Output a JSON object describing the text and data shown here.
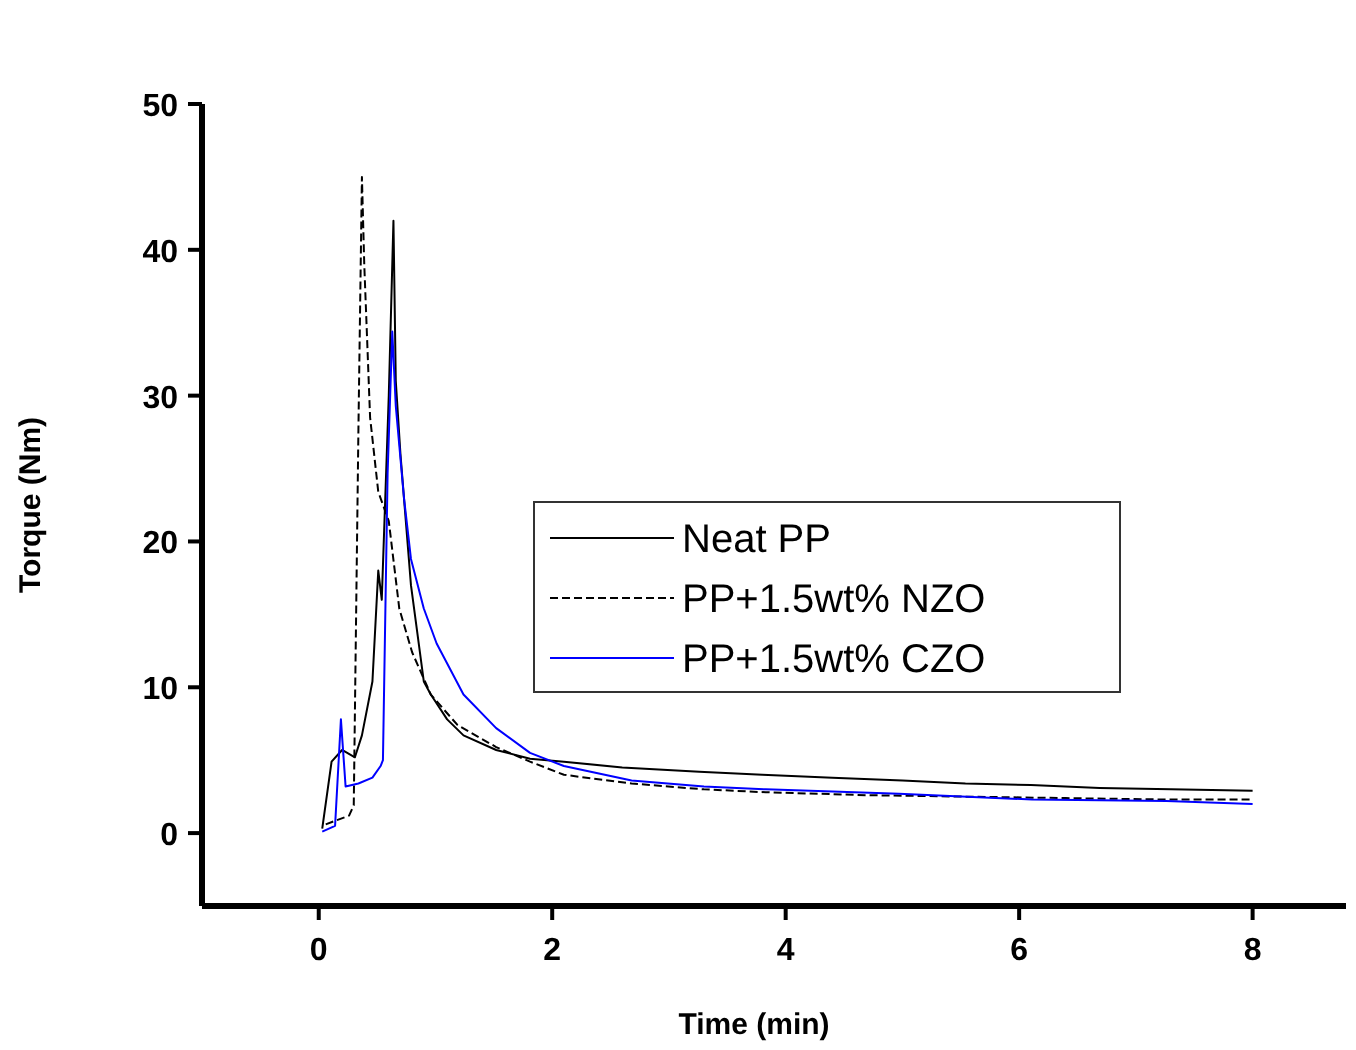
{
  "chart_data": {
    "type": "line",
    "xlabel": "Time (min)",
    "ylabel": "Torque (Nm)",
    "xlim": [
      -1,
      8.8
    ],
    "ylim": [
      -5,
      50
    ],
    "xticks": [
      0,
      2,
      4,
      6,
      8
    ],
    "yticks": [
      0,
      10,
      20,
      30,
      40,
      50
    ],
    "grid": false,
    "legend": "right",
    "series": [
      {
        "name": "Neat PP",
        "color": "#000000",
        "line_style": "solid",
        "x": [
          0.03,
          0.11,
          0.2,
          0.31,
          0.37,
          0.46,
          0.51,
          0.54,
          0.6,
          0.64,
          0.66,
          0.7,
          0.79,
          0.9,
          0.96,
          1.1,
          1.24,
          1.52,
          1.81,
          2.1,
          2.6,
          3.26,
          3.8,
          4.4,
          5.0,
          5.54,
          6.1,
          6.69,
          7.3,
          8.0
        ],
        "values": [
          0.3,
          4.9,
          5.7,
          5.2,
          6.7,
          10.4,
          18,
          16,
          30,
          42,
          31,
          26,
          17,
          10.4,
          9.5,
          7.8,
          6.7,
          5.7,
          5.1,
          4.9,
          4.5,
          4.2,
          4.0,
          3.8,
          3.6,
          3.4,
          3.3,
          3.1,
          3.0,
          2.9
        ]
      },
      {
        "name": "PP+1.5wt% NZO",
        "color": "#000000",
        "line_style": "dashed",
        "x": [
          0.06,
          0.26,
          0.3,
          0.34,
          0.37,
          0.39,
          0.44,
          0.51,
          0.6,
          0.69,
          0.8,
          0.96,
          1.19,
          1.52,
          1.81,
          2.1,
          2.68,
          3.3,
          3.83,
          4.7,
          5.54,
          6.4,
          7.26,
          8.0
        ],
        "values": [
          0.6,
          1.2,
          1.9,
          27.7,
          45,
          39,
          28.5,
          23.4,
          21.4,
          15.4,
          12.4,
          9.5,
          7.4,
          5.9,
          4.9,
          4.0,
          3.4,
          3.0,
          2.8,
          2.6,
          2.5,
          2.4,
          2.3,
          2.3
        ]
      },
      {
        "name": "PP+1.5wt% CZO",
        "color": "#0000ff",
        "line_style": "solid",
        "x": [
          0.03,
          0.14,
          0.19,
          0.23,
          0.34,
          0.46,
          0.53,
          0.55,
          0.59,
          0.63,
          0.66,
          0.73,
          0.79,
          0.9,
          1.01,
          1.24,
          1.52,
          1.81,
          2.1,
          2.68,
          3.3,
          3.83,
          4.97,
          6.11,
          7.26,
          8.0
        ],
        "values": [
          0.1,
          0.5,
          7.8,
          3.2,
          3.4,
          3.8,
          4.6,
          5,
          24.7,
          34.4,
          29.3,
          23,
          18.8,
          15.4,
          13,
          9.5,
          7.2,
          5.5,
          4.6,
          3.6,
          3.2,
          3.0,
          2.7,
          2.3,
          2.2,
          2.0
        ]
      }
    ]
  }
}
